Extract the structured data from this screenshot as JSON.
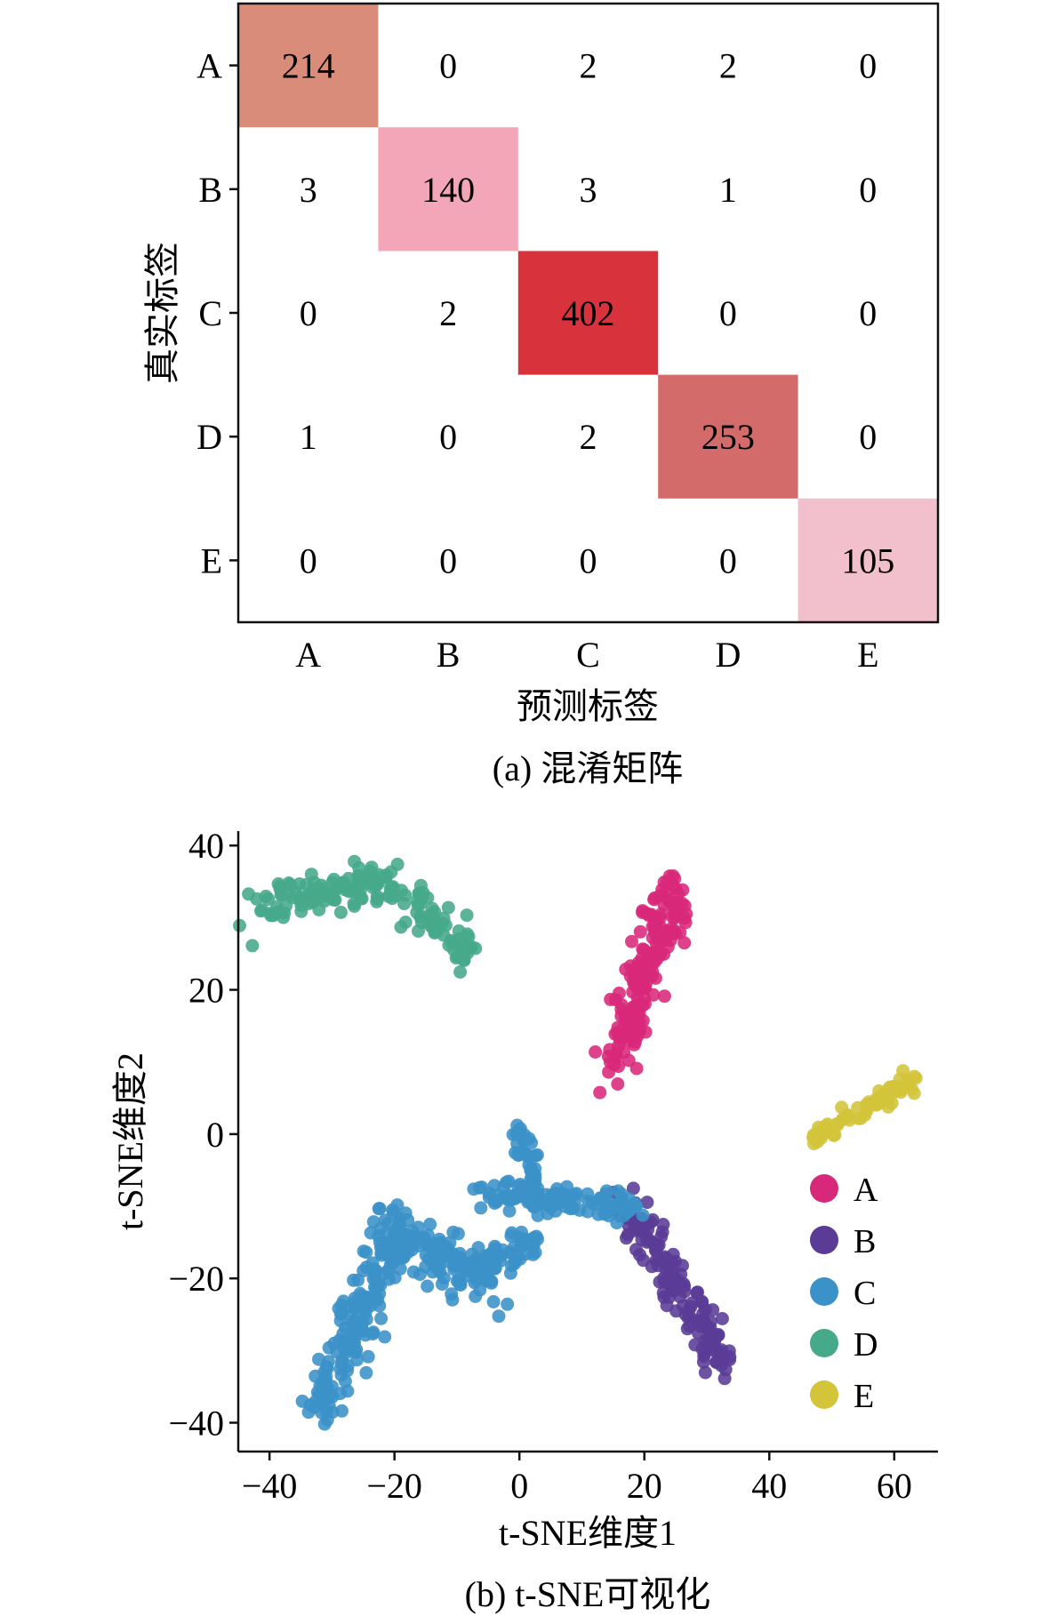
{
  "chart_data": [
    {
      "type": "heatmap",
      "ylabel": "真实标签",
      "xlabel": "预测标签",
      "caption": "(a) 混淆矩阵",
      "rows": [
        "A",
        "B",
        "C",
        "D",
        "E"
      ],
      "cols": [
        "A",
        "B",
        "C",
        "D",
        "E"
      ],
      "matrix": [
        [
          214,
          0,
          2,
          2,
          0
        ],
        [
          3,
          140,
          3,
          1,
          0
        ],
        [
          0,
          2,
          402,
          0,
          0
        ],
        [
          1,
          0,
          2,
          253,
          0
        ],
        [
          0,
          0,
          0,
          0,
          105
        ]
      ],
      "cell_colors": {
        "A": "#d98c7a",
        "B": "#f3a6b8",
        "C": "#d8333d",
        "D": "#d46b6b",
        "E": "#f1c0cc"
      }
    },
    {
      "type": "scatter",
      "xlabel": "t-SNE维度1",
      "ylabel": "t-SNE维度2",
      "caption": "(b) t-SNE可视化",
      "xlim": [
        -45,
        67
      ],
      "ylim": [
        -44,
        42
      ],
      "xticks": [
        "−40",
        "−20",
        "0",
        "20",
        "40",
        "60"
      ],
      "xtick_values": [
        -40,
        -20,
        0,
        20,
        40,
        60
      ],
      "yticks": [
        "40",
        "20",
        "0",
        "−20",
        "−40"
      ],
      "ytick_values": [
        40,
        20,
        0,
        -20,
        -40
      ],
      "legend_position": "right",
      "series": [
        {
          "name": "A",
          "color": "#d8287a",
          "clusters": [
            {
              "x0": 15,
              "y0": 10,
              "x1": 25,
              "y1": 34,
              "spread": 3.2,
              "count": 170
            }
          ]
        },
        {
          "name": "B",
          "color": "#5a3b96",
          "clusters": [
            {
              "x0": 17,
              "y0": -9,
              "x1": 33,
              "y1": -32,
              "spread": 2.2,
              "count": 140
            }
          ]
        },
        {
          "name": "C",
          "color": "#3a92c8",
          "clusters": [
            {
              "x0": -32,
              "y0": -39,
              "x1": -21,
              "y1": -15,
              "spread": 3.0,
              "count": 150
            },
            {
              "x0": -22,
              "y0": -12,
              "x1": -5,
              "y1": -20,
              "spread": 3.5,
              "count": 120
            },
            {
              "x0": -10,
              "y0": -20,
              "x1": 2,
              "y1": -15,
              "spread": 2.0,
              "count": 60
            },
            {
              "x0": -6,
              "y0": -8,
              "x1": 18,
              "y1": -10,
              "spread": 2.0,
              "count": 120
            },
            {
              "x0": 0,
              "y0": 1,
              "x1": 3,
              "y1": -10,
              "spread": 1.4,
              "count": 40
            }
          ]
        },
        {
          "name": "D",
          "color": "#45a98a",
          "clusters": [
            {
              "x0": -42,
              "y0": 31,
              "x1": -20,
              "y1": 36,
              "spread": 2.4,
              "count": 110
            },
            {
              "x0": -20,
              "y0": 34,
              "x1": -8,
              "y1": 25,
              "spread": 2.2,
              "count": 70
            }
          ]
        },
        {
          "name": "E",
          "color": "#d3c43a",
          "clusters": [
            {
              "x0": 47,
              "y0": -0.5,
              "x1": 63,
              "y1": 7.5,
              "spread": 1.2,
              "count": 80
            }
          ]
        }
      ]
    }
  ]
}
